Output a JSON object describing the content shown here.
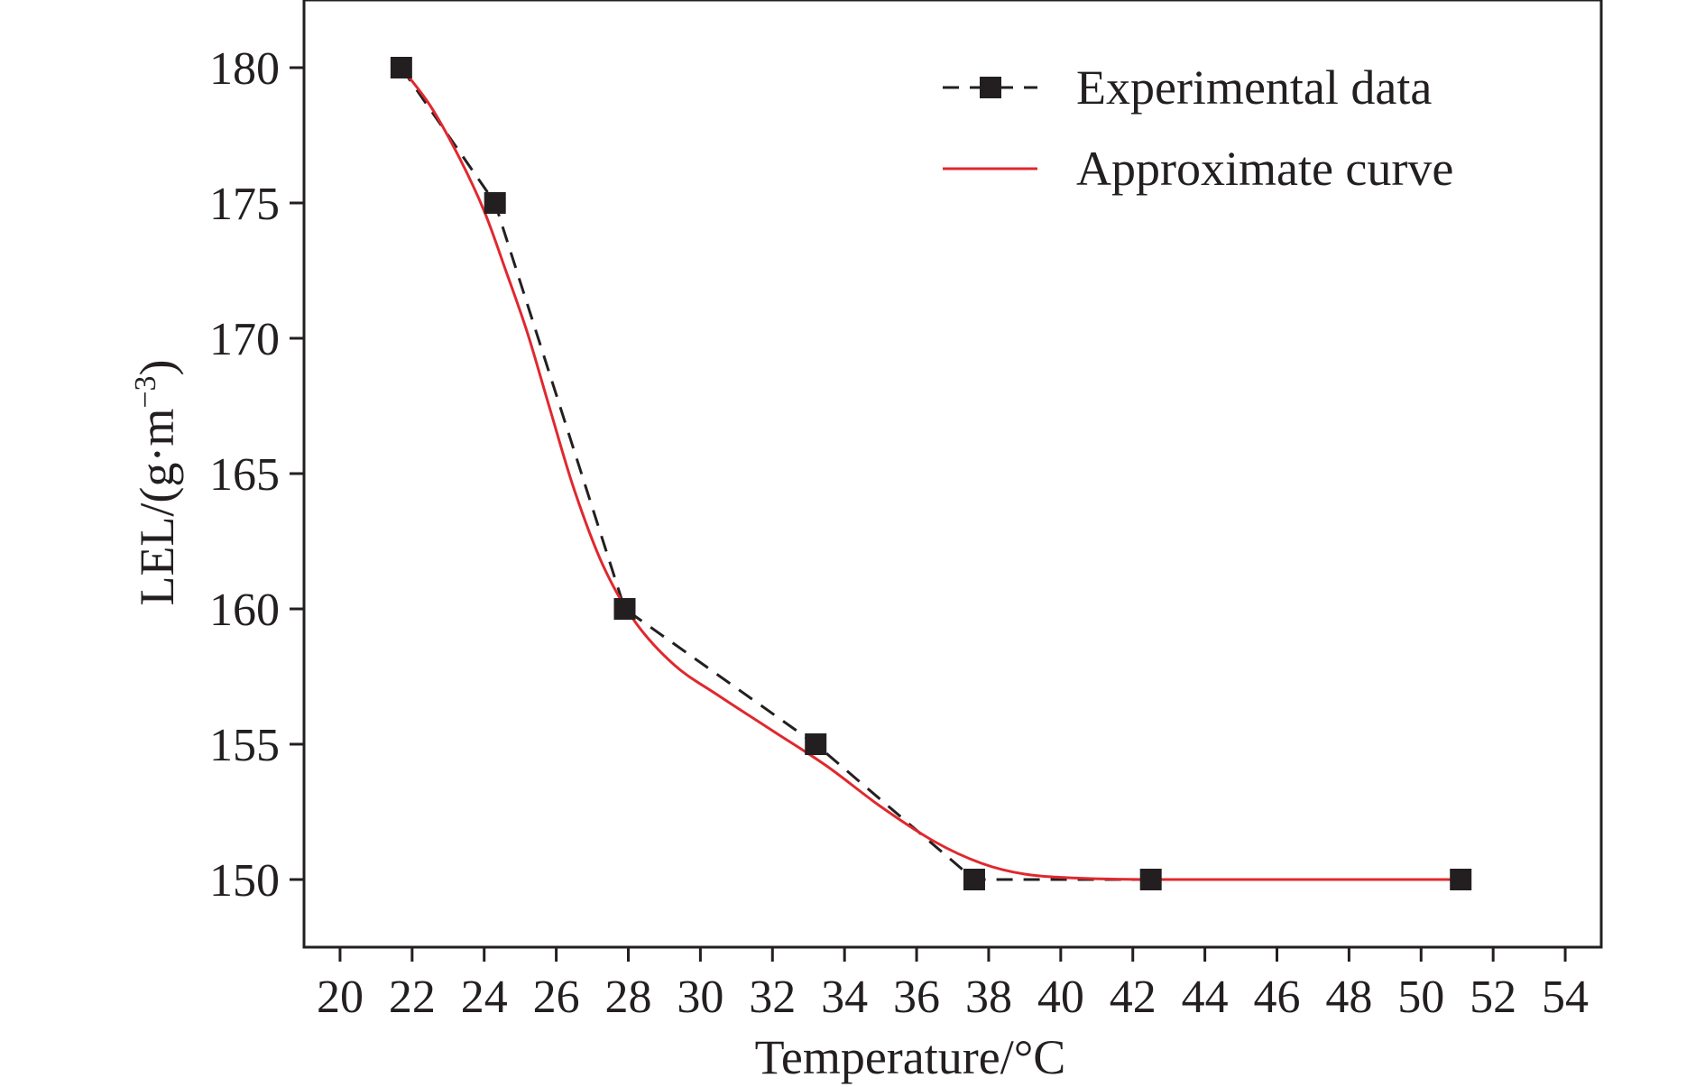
{
  "chart_data": {
    "type": "line",
    "xlabel": "Temperature/°C",
    "ylabel_main": "LEL/(g·m",
    "ylabel_sup": "−3",
    "ylabel_close": ")",
    "xlim": [
      19,
      55
    ],
    "ylim": [
      147.5,
      182.5
    ],
    "x_ticks": [
      20,
      22,
      24,
      26,
      28,
      30,
      32,
      34,
      36,
      38,
      40,
      42,
      44,
      46,
      48,
      50,
      52,
      54
    ],
    "y_ticks": [
      150,
      155,
      160,
      165,
      170,
      175,
      180
    ],
    "grid": false,
    "legend_position": "top-right",
    "series": [
      {
        "name": "Experimental data",
        "style": "dashed-line-square-markers",
        "color": "#231f20",
        "x": [
          21.7,
          24.3,
          27.9,
          33.2,
          37.6,
          42.5,
          51.1
        ],
        "y": [
          180,
          175,
          160,
          155,
          150,
          150,
          150
        ]
      },
      {
        "name": "Approximate curve",
        "style": "solid-line",
        "color": "#e0282e",
        "x": [
          21.7,
          22.5,
          23.3,
          24.0,
          24.6,
          25.2,
          25.8,
          26.5,
          27.3,
          28.2,
          29.3,
          30.5,
          32.0,
          33.5,
          35.0,
          36.5,
          37.8,
          39.0,
          40.5,
          42.5,
          46.0,
          51.1
        ],
        "y": [
          180.0,
          178.6,
          176.7,
          174.7,
          172.5,
          170.2,
          167.5,
          164.4,
          161.6,
          159.5,
          157.9,
          156.8,
          155.5,
          154.2,
          152.7,
          151.4,
          150.6,
          150.2,
          150.05,
          150.0,
          150.0,
          150.0
        ]
      }
    ]
  }
}
